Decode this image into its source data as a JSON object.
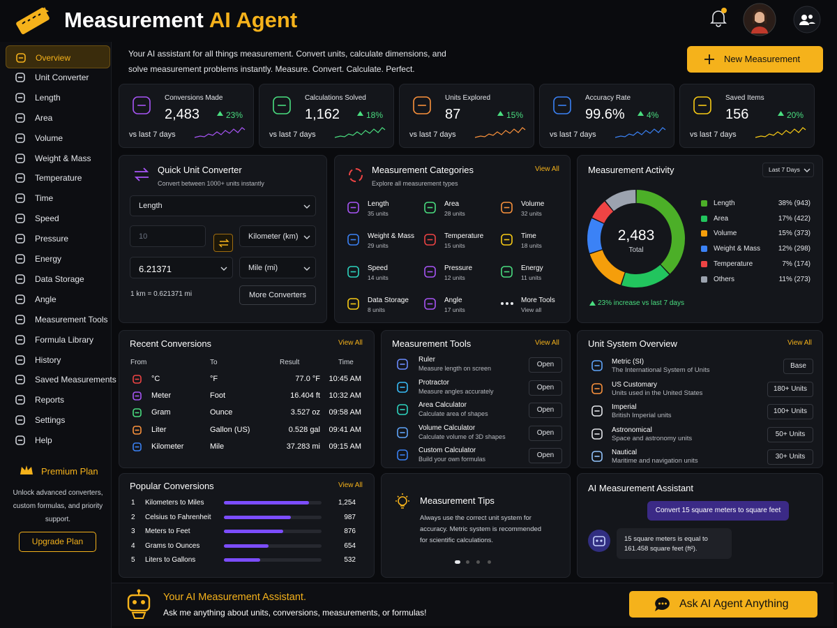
{
  "header": {
    "title_main": "Measurement",
    "title_accent": "AI Agent"
  },
  "sidebar": {
    "items": [
      "Overview",
      "Unit Converter",
      "Length",
      "Area",
      "Volume",
      "Weight & Mass",
      "Temperature",
      "Time",
      "Speed",
      "Pressure",
      "Energy",
      "Data Storage",
      "Angle",
      "Measurement Tools",
      "Formula Library",
      "History",
      "Saved Measurements",
      "Reports",
      "Settings",
      "Help"
    ],
    "premium": {
      "title": "Premium Plan",
      "text": "Unlock advanced converters, custom formulas, and priority support.",
      "button": "Upgrade Plan"
    }
  },
  "intro": "Your AI assistant for all things measurement. Convert units, calculate dimensions, and solve measurement problems instantly. Measure. Convert. Calculate. Perfect.",
  "new_button": "New Measurement",
  "stats": [
    {
      "label": "Conversions Made",
      "value": "2,483",
      "change": "23%",
      "note": "vs last 7 days",
      "color": "#a855f7"
    },
    {
      "label": "Calculations Solved",
      "value": "1,162",
      "change": "18%",
      "note": "vs last 7 days",
      "color": "#4ade80"
    },
    {
      "label": "Units Explored",
      "value": "87",
      "change": "15%",
      "note": "vs last 7 days",
      "color": "#fb923c"
    },
    {
      "label": "Accuracy Rate",
      "value": "99.6%",
      "change": "4%",
      "note": "vs last 7 days",
      "color": "#3b82f6"
    },
    {
      "label": "Saved Items",
      "value": "156",
      "change": "20%",
      "note": "vs last 7 days",
      "color": "#facc15"
    }
  ],
  "converter": {
    "title": "Quick Unit Converter",
    "subtitle": "Convert between 1000+ units instantly",
    "category": "Length",
    "input": "10",
    "from": "Kilometer (km)",
    "result": "6.21371",
    "to": "Mile (mi)",
    "formula": "1 km = 0.621371 mi",
    "button": "More Converters"
  },
  "categories": {
    "title": "Measurement Categories",
    "subtitle": "Explore all measurement types",
    "view_all": "View All",
    "items": [
      {
        "name": "Length",
        "detail": "35 units",
        "color": "#a855f7"
      },
      {
        "name": "Area",
        "detail": "28 units",
        "color": "#4ade80"
      },
      {
        "name": "Volume",
        "detail": "32 units",
        "color": "#fb923c"
      },
      {
        "name": "Weight & Mass",
        "detail": "29 units",
        "color": "#3b82f6"
      },
      {
        "name": "Temperature",
        "detail": "15 units",
        "color": "#ef4444"
      },
      {
        "name": "Time",
        "detail": "18 units",
        "color": "#facc15"
      },
      {
        "name": "Speed",
        "detail": "14 units",
        "color": "#2dd4bf"
      },
      {
        "name": "Pressure",
        "detail": "12 units",
        "color": "#a855f7"
      },
      {
        "name": "Energy",
        "detail": "11 units",
        "color": "#4ade80"
      },
      {
        "name": "Data Storage",
        "detail": "8 units",
        "color": "#facc15"
      },
      {
        "name": "Angle",
        "detail": "17 units",
        "color": "#a855f7"
      },
      {
        "name": "More Tools",
        "detail": "View all",
        "color": "#d1d5db"
      }
    ]
  },
  "activity": {
    "title": "Measurement Activity",
    "period": "Last 7 Days",
    "total": "2,483",
    "total_label": "Total",
    "categories": [
      "Length",
      "Area",
      "Volume",
      "Weight & Mass",
      "Temperature",
      "Others"
    ],
    "values": [
      38,
      17,
      15,
      12,
      7,
      11
    ],
    "value_labels": [
      "38% (943)",
      "17% (422)",
      "15% (373)",
      "12% (298)",
      "7% (174)",
      "11% (273)"
    ],
    "colors": [
      "#4caf28",
      "#22c55e",
      "#f59e0b",
      "#3b82f6",
      "#ef4444",
      "#9ca3af"
    ],
    "footnote": "23% increase vs last 7 days"
  },
  "recent": {
    "title": "Recent Conversions",
    "view_all": "View All",
    "columns": [
      "From",
      "To",
      "Result",
      "Time"
    ],
    "rows": [
      [
        "°C",
        "°F",
        "77.0 °F",
        "10:45 AM"
      ],
      [
        "Meter",
        "Foot",
        "16.404 ft",
        "10:32 AM"
      ],
      [
        "Gram",
        "Ounce",
        "3.527 oz",
        "09:58 AM"
      ],
      [
        "Liter",
        "Gallon (US)",
        "0.528 gal",
        "09:41 AM"
      ],
      [
        "Kilometer",
        "Mile",
        "37.283 mi",
        "09:15 AM"
      ]
    ]
  },
  "tools": {
    "title": "Measurement Tools",
    "view_all": "View All",
    "button": "Open",
    "items": [
      {
        "name": "Ruler",
        "desc": "Measure length on screen"
      },
      {
        "name": "Protractor",
        "desc": "Measure angles accurately"
      },
      {
        "name": "Area Calculator",
        "desc": "Calculate area of shapes"
      },
      {
        "name": "Volume Calculator",
        "desc": "Calculate volume of 3D shapes"
      },
      {
        "name": "Custom Calculator",
        "desc": "Build your own formulas"
      }
    ]
  },
  "units": {
    "title": "Unit System Overview",
    "view_all": "View All",
    "items": [
      {
        "name": "Metric (SI)",
        "desc": "The International System of Units",
        "badge": "Base"
      },
      {
        "name": "US Customary",
        "desc": "Units used in the United States",
        "badge": "180+ Units"
      },
      {
        "name": "Imperial",
        "desc": "British Imperial units",
        "badge": "100+ Units"
      },
      {
        "name": "Astronomical",
        "desc": "Space and astronomy units",
        "badge": "50+ Units"
      },
      {
        "name": "Nautical",
        "desc": "Maritime and navigation units",
        "badge": "30+ Units"
      }
    ]
  },
  "popular": {
    "title": "Popular Conversions",
    "view_all": "View All",
    "ranks": [
      1,
      2,
      3,
      4,
      5
    ],
    "names": [
      "Kilometers to Miles",
      "Celsius to Fahrenheit",
      "Meters to Feet",
      "Grams to Ounces",
      "Liters to Gallons"
    ],
    "values": [
      1254,
      987,
      876,
      654,
      532
    ],
    "value_labels": [
      "1,254",
      "987",
      "876",
      "654",
      "532"
    ]
  },
  "tips": {
    "title": "Measurement Tips",
    "text": "Always use the correct unit system for accuracy. Metric system is recommended for scientific calculations."
  },
  "assistant": {
    "title": "AI Measurement Assistant",
    "user": "Convert 15 square meters to square feet",
    "reply": "15 square meters is equal to 161.458 square feet (ft²)."
  },
  "footer": {
    "title": "Your AI Measurement Assistant.",
    "text": "Ask me anything about units, conversions, measurements, or formulas!",
    "button": "Ask AI Agent Anything"
  }
}
